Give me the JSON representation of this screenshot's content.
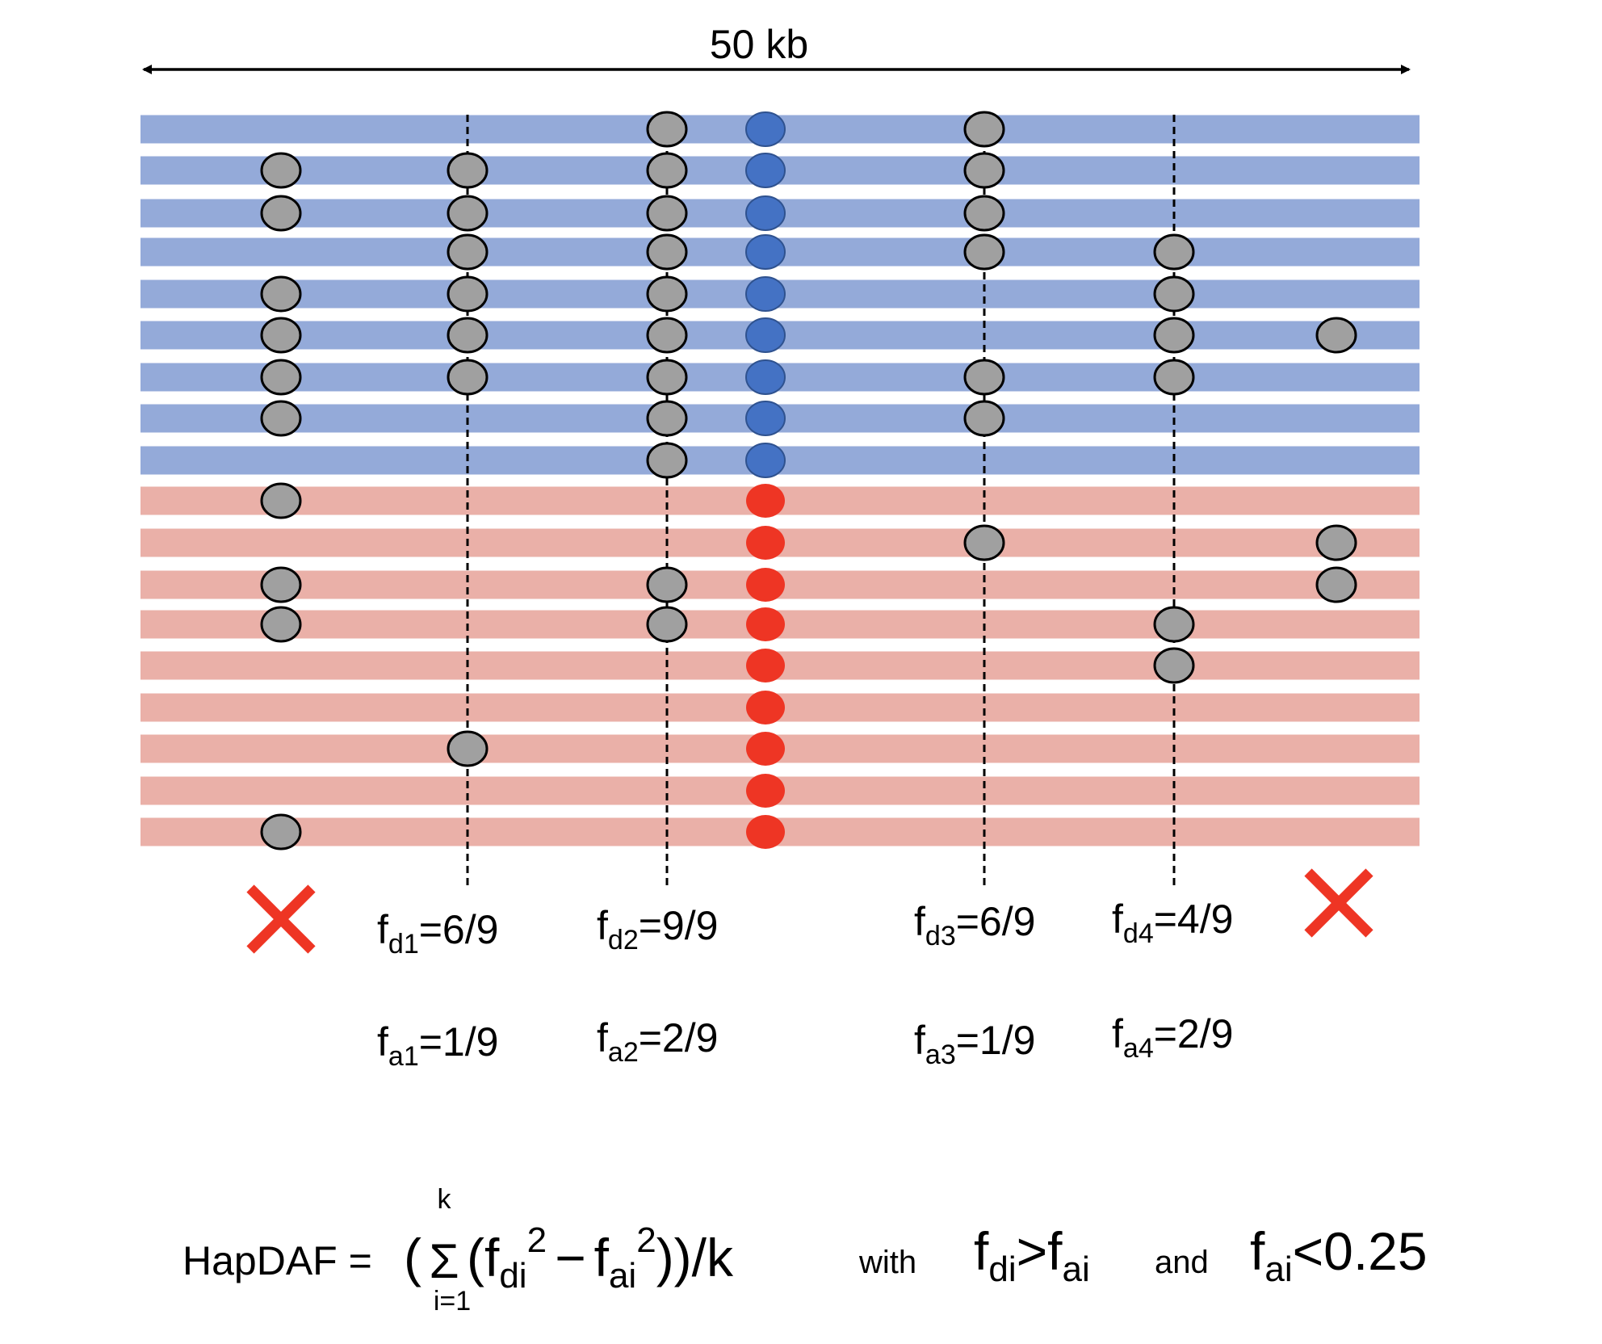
{
  "scale_label": "50 kb",
  "colors": {
    "blue_band": "#94AAD9",
    "red_band": "#EAB0A8",
    "gray_snp": "#A0A0A0",
    "blue_core": "#4472C4",
    "red_core": "#EE3524",
    "reject_x": "#EE3524"
  },
  "haplotypes": {
    "derived_count": 9,
    "ancestral_count": 9
  },
  "snps": [
    {
      "id": "s0",
      "guide": false,
      "rejected": true,
      "derived": [
        false,
        true,
        true,
        false,
        true,
        true,
        true,
        true,
        false
      ],
      "ancestral": [
        true,
        false,
        true,
        true,
        false,
        false,
        false,
        false,
        true
      ]
    },
    {
      "id": "s1",
      "guide": true,
      "rejected": false,
      "derived": [
        false,
        true,
        true,
        true,
        true,
        true,
        true,
        false,
        false
      ],
      "ancestral": [
        false,
        false,
        false,
        false,
        false,
        false,
        true,
        false,
        false
      ]
    },
    {
      "id": "s2",
      "guide": true,
      "rejected": false,
      "derived": [
        true,
        true,
        true,
        true,
        true,
        true,
        true,
        true,
        true
      ],
      "ancestral": [
        false,
        false,
        true,
        true,
        false,
        false,
        false,
        false,
        false
      ]
    },
    {
      "id": "s3",
      "guide": true,
      "rejected": false,
      "derived": [
        true,
        true,
        true,
        true,
        false,
        false,
        true,
        true,
        false
      ],
      "ancestral": [
        false,
        true,
        false,
        false,
        false,
        false,
        false,
        false,
        false
      ]
    },
    {
      "id": "s4",
      "guide": true,
      "rejected": false,
      "derived": [
        false,
        false,
        false,
        true,
        true,
        true,
        true,
        false,
        false
      ],
      "ancestral": [
        false,
        false,
        false,
        true,
        true,
        false,
        false,
        false,
        false
      ]
    },
    {
      "id": "s5",
      "guide": false,
      "rejected": true,
      "derived": [
        false,
        false,
        false,
        false,
        false,
        true,
        false,
        false,
        false
      ],
      "ancestral": [
        false,
        true,
        true,
        false,
        false,
        false,
        false,
        false,
        false
      ]
    }
  ],
  "frequencies": [
    {
      "d_base": "f",
      "d_sub": "d1",
      "d_val": "=6/9",
      "a_base": "f",
      "a_sub": "a1",
      "a_val": "=1/9"
    },
    {
      "d_base": "f",
      "d_sub": "d2",
      "d_val": "=9/9",
      "a_base": "f",
      "a_sub": "a2",
      "a_val": "=2/9"
    },
    {
      "d_base": "f",
      "d_sub": "d3",
      "d_val": "=6/9",
      "a_base": "f",
      "a_sub": "a3",
      "a_val": "=1/9"
    },
    {
      "d_base": "f",
      "d_sub": "d4",
      "d_val": "=4/9",
      "a_base": "f",
      "a_sub": "a4",
      "a_val": "=2/9"
    }
  ],
  "formula": {
    "lhs": "HapDAF =",
    "open": "(",
    "sigma": "Σ",
    "sigma_upper": "k",
    "sigma_lower": "i=1",
    "open2": "(",
    "f1": "f",
    "sub_di": "di",
    "sup_2a": "2",
    "minus": "−",
    "f2": "f",
    "sub_ai": "ai",
    "sup_2b": "2",
    "close": "))/k",
    "with": "with",
    "c1_f": "f",
    "c1_sub": "di",
    "c1_op": ">f",
    "c1_sub2": "ai",
    "and": "and",
    "c2_f": "f",
    "c2_sub": "ai",
    "c2_rest": "<0.25"
  }
}
